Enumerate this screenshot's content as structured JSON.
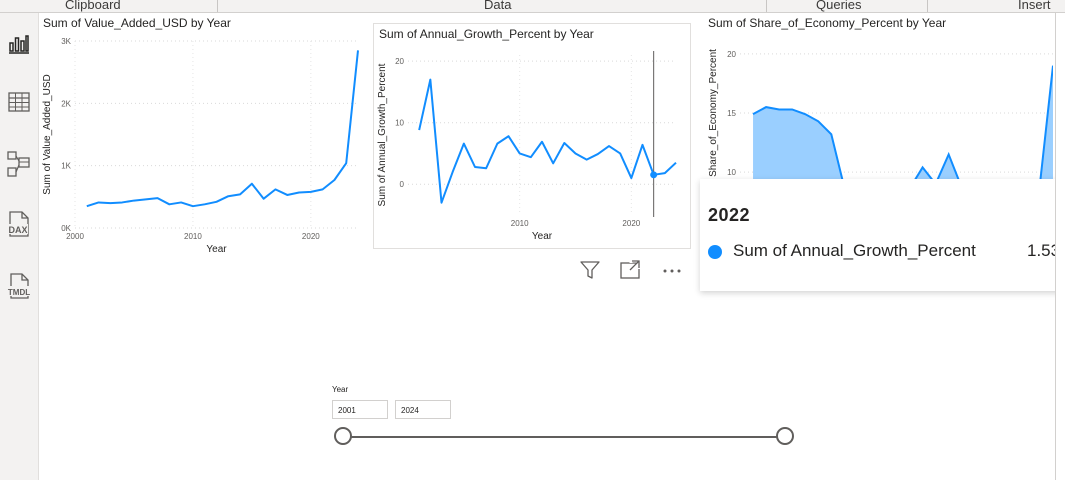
{
  "ribbon": {
    "groups": [
      "Clipboard",
      "Data",
      "Queries",
      "Insert"
    ]
  },
  "left_nav": {
    "items": [
      {
        "icon": "report-view-icon"
      },
      {
        "icon": "table-view-icon"
      },
      {
        "icon": "model-view-icon"
      },
      {
        "icon": "dax-query-view-icon",
        "glyph": "DAX"
      },
      {
        "icon": "tmdl-view-icon",
        "glyph": "TMDL"
      }
    ]
  },
  "visuals": {
    "value_added": {
      "title": "Sum of Value_Added_USD by Year"
    },
    "growth": {
      "title": "Sum of Annual_Growth_Percent by Year"
    },
    "share": {
      "title": "Sum of Share_of_Economy_Percent by Year"
    }
  },
  "chart_data": [
    {
      "type": "line",
      "title": "Sum of Value_Added_USD by Year",
      "xlabel": "Year",
      "ylabel": "Sum of Value_Added_USD",
      "x_ticks": [
        "2000",
        "2010",
        "2020"
      ],
      "y_ticks": [
        "0K",
        "1K",
        "2K",
        "3K"
      ],
      "xlim": [
        2000,
        2024
      ],
      "ylim": [
        0,
        3000
      ],
      "grid": true,
      "color": "#118DFF",
      "series": [
        {
          "x": [
            2001,
            2002,
            2003,
            2004,
            2005,
            2006,
            2007,
            2008,
            2009,
            2010,
            2011,
            2012,
            2013,
            2014,
            2015,
            2016,
            2017,
            2018,
            2019,
            2020,
            2021,
            2022,
            2023,
            2024
          ],
          "values": [
            350,
            410,
            400,
            410,
            440,
            460,
            480,
            380,
            410,
            350,
            380,
            420,
            510,
            540,
            710,
            470,
            620,
            530,
            570,
            580,
            620,
            770,
            1040,
            2850
          ]
        }
      ]
    },
    {
      "type": "line",
      "title": "Sum of Annual_Growth_Percent by Year",
      "xlabel": "Year",
      "ylabel": "Sum of Annual_Growth_Percent",
      "x_ticks": [
        "2010",
        "2020"
      ],
      "y_ticks": [
        "0",
        "10",
        "20"
      ],
      "xlim": [
        2000,
        2024
      ],
      "ylim": [
        -5,
        21
      ],
      "grid": true,
      "color": "#118DFF",
      "highlight": {
        "x": 2022,
        "value": 1.53
      },
      "series": [
        {
          "x": [
            2001,
            2002,
            2003,
            2004,
            2005,
            2006,
            2007,
            2008,
            2009,
            2010,
            2011,
            2012,
            2013,
            2014,
            2015,
            2016,
            2017,
            2018,
            2019,
            2020,
            2021,
            2022,
            2023,
            2024
          ],
          "values": [
            8.8,
            17.0,
            -3.0,
            2.0,
            6.6,
            2.8,
            2.6,
            6.6,
            7.8,
            5.0,
            4.4,
            6.9,
            3.4,
            6.7,
            5.0,
            4.0,
            4.9,
            6.2,
            5.0,
            1.0,
            6.4,
            1.53,
            1.8,
            3.5
          ]
        }
      ]
    },
    {
      "type": "area",
      "title": "Sum of Share_of_Economy_Percent by Year",
      "ylabel": "Share_of_Economy_Percent",
      "y_ticks": [
        "10",
        "15",
        "20"
      ],
      "xlim": [
        2000,
        2024
      ],
      "ylim": [
        9,
        21
      ],
      "grid": true,
      "color": "#118DFF",
      "fill": "#9ACFFF",
      "series": [
        {
          "x": [
            2001,
            2002,
            2003,
            2004,
            2005,
            2006,
            2007,
            2008,
            2009,
            2010,
            2011,
            2012,
            2013,
            2014,
            2015,
            2016,
            2017,
            2018,
            2019,
            2020,
            2021,
            2022,
            2023,
            2024
          ],
          "values": [
            14.9,
            15.5,
            15.3,
            15.3,
            14.9,
            14.3,
            13.2,
            8.7,
            8.4,
            8.3,
            8.5,
            8.5,
            8.6,
            10.4,
            9.0,
            11.5,
            8.7,
            8.5,
            8.5,
            8.5,
            8.6,
            8.6,
            9.0,
            19.0
          ]
        }
      ]
    }
  ],
  "tooltip": {
    "header": "2022",
    "series_name": "Sum of Annual_Growth_Percent",
    "value": "1.53",
    "color": "#118DFF"
  },
  "visual_header": {
    "icons": [
      "filter-icon",
      "focus-mode-icon",
      "more-options-icon"
    ]
  },
  "slicer": {
    "title": "Year",
    "start": "2001",
    "end": "2024",
    "range": [
      2001,
      2024
    ]
  }
}
